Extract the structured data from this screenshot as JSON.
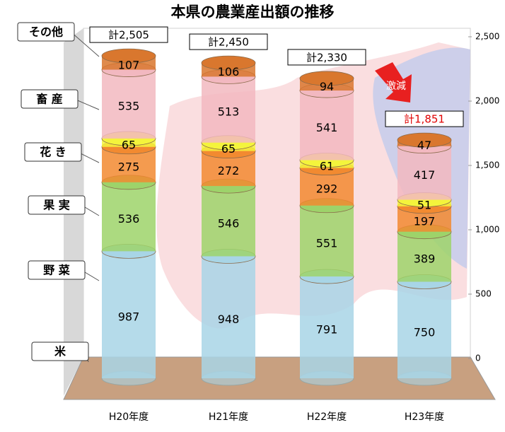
{
  "chart_data": {
    "type": "bar",
    "stacked": true,
    "title": "本県の農業産出額の推移",
    "categories": [
      "H20年度",
      "H21年度",
      "H22年度",
      "H23年度"
    ],
    "series": [
      {
        "name": "米",
        "color": "#a8d5e6",
        "values": [
          987,
          948,
          791,
          750
        ]
      },
      {
        "name": "野 菜",
        "color": "#9dd36a",
        "values": [
          536,
          546,
          551,
          389
        ]
      },
      {
        "name": "果 実",
        "color": "#f28a30",
        "values": [
          275,
          272,
          292,
          197
        ]
      },
      {
        "name": "花 き",
        "color": "#f4f43c",
        "values": [
          65,
          65,
          61,
          51
        ]
      },
      {
        "name": "畜 産",
        "color": "#f2b8c0",
        "values": [
          535,
          513,
          541,
          417
        ]
      },
      {
        "name": "その他",
        "color": "#d9772e",
        "values": [
          107,
          106,
          94,
          47
        ]
      }
    ],
    "totals": [
      2505,
      2450,
      2330,
      1851
    ],
    "total_labels": [
      "計2,505",
      "計2,450",
      "計2,330",
      "計1,851"
    ],
    "total_label_colors": [
      "#000000",
      "#000000",
      "#000000",
      "#e00000"
    ],
    "annotation": "激減",
    "ylim": [
      0,
      2500
    ],
    "yticks": [
      0,
      500,
      {
        "value": 1000,
        "label": "1,000"
      },
      {
        "value": 1500,
        "label": "1,500"
      },
      {
        "value": 2000,
        "label": "2,000"
      },
      {
        "value": 2500,
        "label": "2,500"
      }
    ],
    "grid": false
  }
}
